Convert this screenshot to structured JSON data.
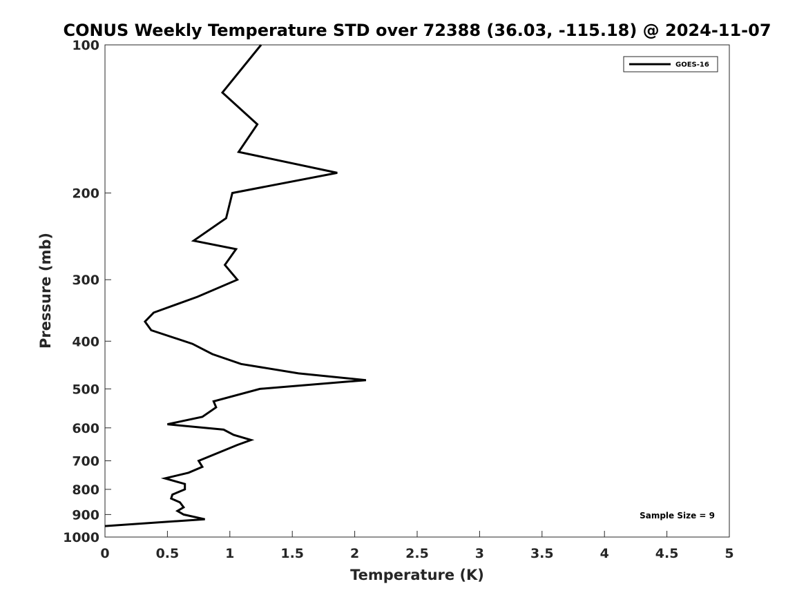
{
  "chart_data": {
    "type": "line",
    "title": "CONUS Weekly Temperature STD over 72388 (36.03, -115.18) @ 2024-11-07",
    "xlabel": "Temperature (K)",
    "ylabel": "Pressure (mb)",
    "xlim": [
      0,
      5
    ],
    "ylim": [
      100,
      1000
    ],
    "yscale": "log",
    "y_reversed": true,
    "x_ticks": [
      "0",
      "0.5",
      "1",
      "1.5",
      "2",
      "2.5",
      "3",
      "3.5",
      "4",
      "4.5",
      "5"
    ],
    "y_ticks": [
      "100",
      "200",
      "300",
      "400",
      "500",
      "600",
      "700",
      "800",
      "900",
      "1000"
    ],
    "grid": false,
    "legend_position": "top-right",
    "annotation": "Sample Size = 9",
    "series": [
      {
        "name": "GOES-16",
        "color": "#000000",
        "points": [
          [
            1.25,
            100
          ],
          [
            0.94,
            125
          ],
          [
            1.22,
            145
          ],
          [
            1.07,
            165
          ],
          [
            1.86,
            182
          ],
          [
            1.02,
            200
          ],
          [
            0.97,
            225
          ],
          [
            0.71,
            250
          ],
          [
            1.05,
            260
          ],
          [
            0.96,
            280
          ],
          [
            1.06,
            300
          ],
          [
            0.74,
            325
          ],
          [
            0.39,
            350
          ],
          [
            0.32,
            365
          ],
          [
            0.37,
            380
          ],
          [
            0.7,
            405
          ],
          [
            0.86,
            425
          ],
          [
            1.09,
            445
          ],
          [
            1.55,
            465
          ],
          [
            2.09,
            480
          ],
          [
            1.24,
            500
          ],
          [
            0.87,
            530
          ],
          [
            0.89,
            545
          ],
          [
            0.78,
            570
          ],
          [
            0.5,
            590
          ],
          [
            0.95,
            605
          ],
          [
            1.03,
            620
          ],
          [
            1.17,
            635
          ],
          [
            1.06,
            650
          ],
          [
            0.75,
            700
          ],
          [
            0.78,
            720
          ],
          [
            0.67,
            740
          ],
          [
            0.48,
            760
          ],
          [
            0.64,
            780
          ],
          [
            0.64,
            800
          ],
          [
            0.54,
            820
          ],
          [
            0.53,
            835
          ],
          [
            0.6,
            850
          ],
          [
            0.63,
            870
          ],
          [
            0.58,
            885
          ],
          [
            0.63,
            900
          ],
          [
            0.8,
            920
          ],
          [
            0.0,
            950
          ]
        ]
      }
    ]
  }
}
